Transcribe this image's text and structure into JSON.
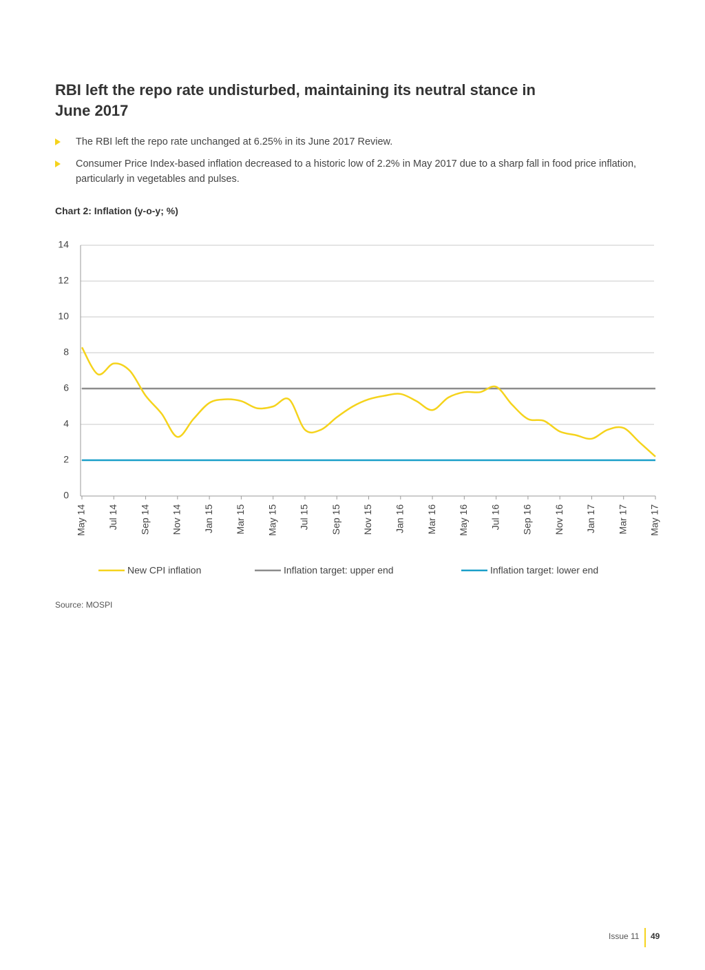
{
  "header": {
    "title": "RBI left the repo rate undisturbed, maintaining its neutral stance in June 2017"
  },
  "bullets": [
    "The RBI left the repo rate unchanged at 6.25% in its June 2017 Review.",
    "Consumer Price Index-based inflation decreased to a historic low of 2.2% in May 2017 due to a sharp fall in food price inflation, particularly in vegetables and pulses."
  ],
  "chart_data": {
    "type": "line",
    "title": "Chart 2: Inflation (y-o-y; %)",
    "categories": [
      "May 14",
      null,
      "Jul 14",
      null,
      "Sep 14",
      null,
      "Nov 14",
      null,
      "Jan 15",
      null,
      "Mar 15",
      null,
      "May 15",
      null,
      "Jul 15",
      null,
      "Sep 15",
      null,
      "Nov 15",
      null,
      "Jan 16",
      null,
      "Mar 16",
      null,
      "May 16",
      null,
      "Jul 16",
      null,
      "Sep 16",
      null,
      "Nov 16",
      null,
      "Jan 17",
      null,
      "Mar 17",
      null,
      "May 17"
    ],
    "series": [
      {
        "name": "New CPI inflation",
        "color": "#f5d31c",
        "values": [
          8.3,
          6.8,
          7.4,
          7.0,
          5.6,
          4.6,
          3.3,
          4.3,
          5.2,
          5.4,
          5.3,
          4.9,
          5.0,
          5.4,
          3.7,
          3.7,
          4.4,
          5.0,
          5.4,
          5.6,
          5.7,
          5.3,
          4.8,
          5.5,
          5.8,
          5.8,
          6.1,
          5.1,
          4.3,
          4.2,
          3.6,
          3.4,
          3.2,
          3.7,
          3.8,
          3.0,
          2.2
        ]
      },
      {
        "name": "Inflation target: upper end",
        "color": "#8c8c8c",
        "values": [
          6,
          6,
          6,
          6,
          6,
          6,
          6,
          6,
          6,
          6,
          6,
          6,
          6,
          6,
          6,
          6,
          6,
          6,
          6,
          6,
          6,
          6,
          6,
          6,
          6,
          6,
          6,
          6,
          6,
          6,
          6,
          6,
          6,
          6,
          6,
          6,
          6
        ]
      },
      {
        "name": "Inflation target: lower end",
        "color": "#1a9fc9",
        "values": [
          2,
          2,
          2,
          2,
          2,
          2,
          2,
          2,
          2,
          2,
          2,
          2,
          2,
          2,
          2,
          2,
          2,
          2,
          2,
          2,
          2,
          2,
          2,
          2,
          2,
          2,
          2,
          2,
          2,
          2,
          2,
          2,
          2,
          2,
          2,
          2,
          2
        ]
      }
    ],
    "ylim": [
      0,
      14
    ],
    "yticks": [
      0,
      2,
      4,
      6,
      8,
      10,
      12,
      14
    ],
    "grid": true,
    "legend": "bottom"
  },
  "source": "Source: MOSPI",
  "footer": {
    "issue": "Issue 11",
    "page": "49"
  }
}
